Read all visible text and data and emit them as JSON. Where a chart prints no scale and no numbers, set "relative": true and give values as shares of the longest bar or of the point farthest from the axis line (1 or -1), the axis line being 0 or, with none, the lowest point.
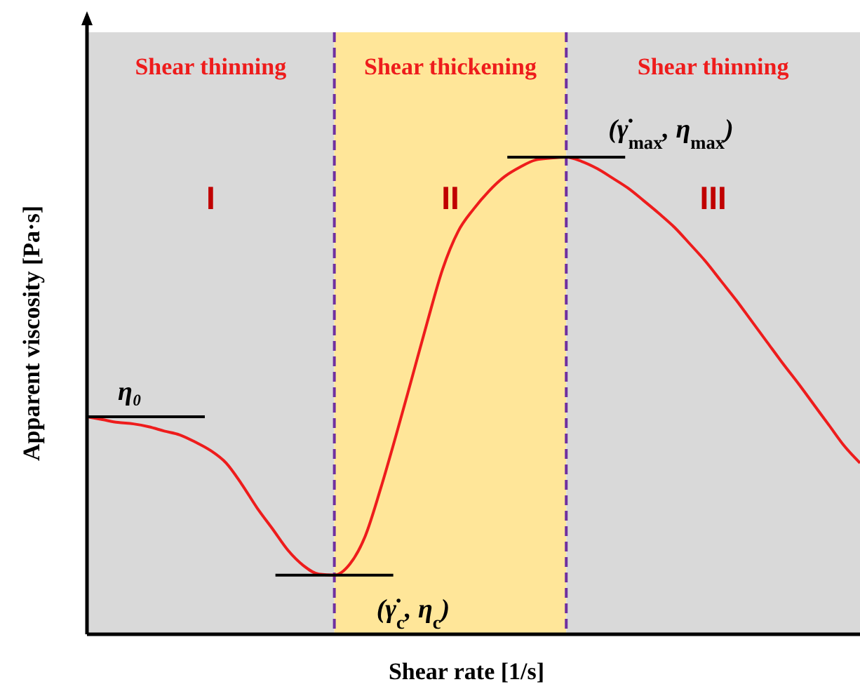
{
  "chart_data": {
    "type": "line",
    "relative": true,
    "xlabel": "Shear rate [1/s]",
    "ylabel": "Apparent viscosity [Pa·s]",
    "categories": [
      null,
      null,
      null,
      null,
      null,
      null,
      null,
      null,
      null,
      null,
      null,
      null,
      null,
      null,
      null,
      null,
      null,
      null,
      null,
      null,
      null,
      null,
      null,
      null,
      null,
      null,
      null,
      null,
      null,
      null,
      null,
      null,
      null,
      null,
      null,
      null,
      null,
      null,
      null,
      null,
      null,
      null,
      null,
      null,
      null,
      null,
      null,
      null,
      null,
      null,
      null
    ],
    "series": [
      {
        "color": "#ee1c1c",
        "values": [
          0.456,
          0.45,
          0.444,
          0.441,
          0.435,
          0.426,
          0.418,
          0.403,
          0.385,
          0.359,
          0.315,
          0.265,
          0.221,
          0.176,
          0.144,
          0.126,
          0.124,
          0.147,
          0.206,
          0.306,
          0.418,
          0.535,
          0.653,
          0.765,
          0.844,
          0.891,
          0.929,
          0.959,
          0.979,
          0.994,
          0.998,
          1,
          0.991,
          0.976,
          0.956,
          0.935,
          0.909,
          0.882,
          0.853,
          0.818,
          0.782,
          0.741,
          0.7,
          0.656,
          0.612,
          0.568,
          0.526,
          0.482,
          0.438,
          0.394,
          0.359
        ]
      }
    ],
    "annotations": [
      "Shear thinning",
      "Shear thickening",
      "Shear thinning",
      "I",
      "II",
      "III",
      "η₀",
      "(γ̇$_{c}$, η$_{c}$)",
      "(γ̇$_{max}$, η$_{max}$)"
    ],
    "line_style": "solid",
    "marker": "none"
  }
}
